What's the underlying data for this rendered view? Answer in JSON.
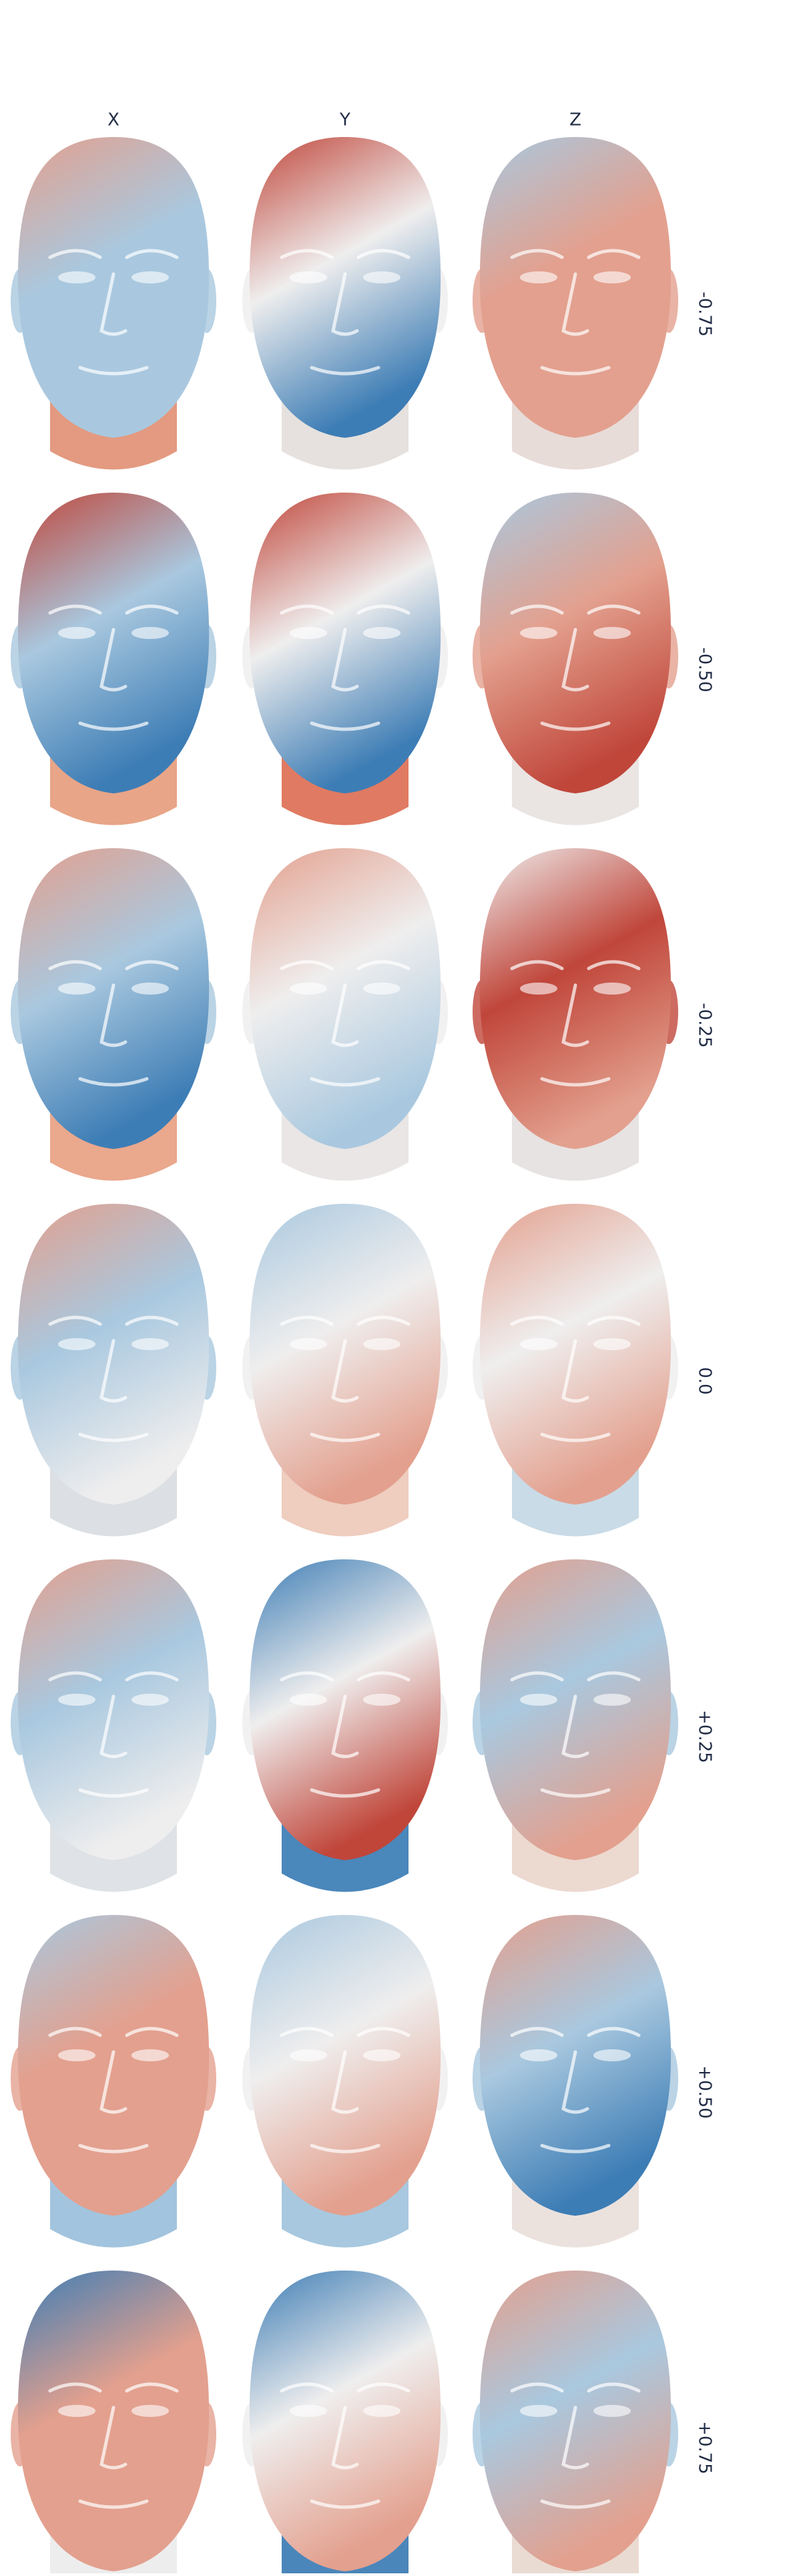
{
  "columns": [
    "X",
    "Y",
    "Z"
  ],
  "rows": [
    "-0.75",
    "-0.50",
    "-0.25",
    "0.0",
    "+0.25",
    "+0.50",
    "+0.75"
  ]
}
